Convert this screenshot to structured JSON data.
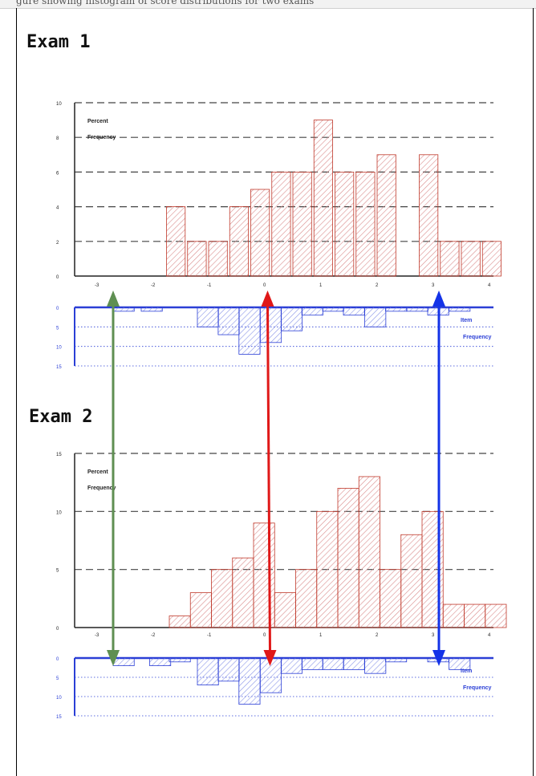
{
  "page": {
    "header_fragment": "gure showing histogram of score distributions for two exams"
  },
  "theme": {
    "percent_bar_color": "#c0392b",
    "percent_hatch_color": "#d98c8c",
    "item_bar_color": "#2b3fd6",
    "item_hatch_color": "#8a96e8",
    "arrow_green": "#5f8f52",
    "arrow_red": "#e01818",
    "arrow_blue": "#1433e8",
    "grid_color": "#444444"
  },
  "chart_data": [
    {
      "type": "bar",
      "title": "Exam 1",
      "percent_panel": {
        "label_lines": [
          "Percent",
          "Frequency"
        ],
        "ylim": [
          0,
          10
        ],
        "yticks": [
          0,
          2,
          4,
          6,
          8,
          10
        ],
        "xlim": [
          -3,
          4
        ],
        "xticks": [
          -3,
          -2,
          -1,
          0,
          1,
          2,
          3,
          4
        ],
        "bin_width": 0.333,
        "bins": [
          {
            "x": -1.75,
            "value": 4
          },
          {
            "x": -1.375,
            "value": 2
          },
          {
            "x": -1.0,
            "value": 2
          },
          {
            "x": -0.625,
            "value": 4
          },
          {
            "x": -0.25,
            "value": 5
          },
          {
            "x": 0.125,
            "value": 6
          },
          {
            "x": 0.5,
            "value": 6
          },
          {
            "x": 0.875,
            "value": 9
          },
          {
            "x": 1.25,
            "value": 6
          },
          {
            "x": 1.625,
            "value": 6
          },
          {
            "x": 2.0,
            "value": 7
          },
          {
            "x": 2.75,
            "value": 7
          },
          {
            "x": 3.125,
            "value": 2
          },
          {
            "x": 3.5,
            "value": 2
          },
          {
            "x": 3.875,
            "value": 2
          }
        ]
      },
      "item_panel": {
        "label_lines": [
          "Item",
          "Frequency"
        ],
        "ylim": [
          0,
          15
        ],
        "yticks": [
          0,
          5,
          10,
          15
        ],
        "bin_width": 0.375,
        "bins": [
          {
            "x": -2.7,
            "value": 1
          },
          {
            "x": -2.2,
            "value": 1
          },
          {
            "x": -1.2,
            "value": 5
          },
          {
            "x": -0.83,
            "value": 7
          },
          {
            "x": -0.46,
            "value": 12
          },
          {
            "x": -0.08,
            "value": 9
          },
          {
            "x": 0.29,
            "value": 6
          },
          {
            "x": 0.66,
            "value": 2
          },
          {
            "x": 1.03,
            "value": 1
          },
          {
            "x": 1.4,
            "value": 2
          },
          {
            "x": 1.78,
            "value": 5
          },
          {
            "x": 2.15,
            "value": 1
          },
          {
            "x": 2.53,
            "value": 1
          },
          {
            "x": 2.9,
            "value": 2
          },
          {
            "x": 3.28,
            "value": 1
          }
        ]
      }
    },
    {
      "type": "bar",
      "title": "Exam 2",
      "percent_panel": {
        "label_lines": [
          "Percent",
          "Frequency"
        ],
        "ylim": [
          0,
          15
        ],
        "yticks": [
          0,
          5,
          10,
          15
        ],
        "xlim": [
          -3,
          4
        ],
        "xticks": [
          -3,
          -2,
          -1,
          0,
          1,
          2,
          3,
          4
        ],
        "bin_width": 0.375,
        "bins": [
          {
            "x": -1.7,
            "value": 1
          },
          {
            "x": -1.325,
            "value": 3
          },
          {
            "x": -0.95,
            "value": 5
          },
          {
            "x": -0.575,
            "value": 6
          },
          {
            "x": -0.2,
            "value": 9
          },
          {
            "x": 0.175,
            "value": 3
          },
          {
            "x": 0.55,
            "value": 5
          },
          {
            "x": 0.925,
            "value": 10
          },
          {
            "x": 1.3,
            "value": 12
          },
          {
            "x": 1.675,
            "value": 13
          },
          {
            "x": 2.05,
            "value": 5
          },
          {
            "x": 2.425,
            "value": 8
          },
          {
            "x": 2.8,
            "value": 10
          },
          {
            "x": 3.175,
            "value": 2
          },
          {
            "x": 3.55,
            "value": 2
          },
          {
            "x": 3.925,
            "value": 2
          }
        ]
      },
      "item_panel": {
        "label_lines": [
          "Item",
          "Frequency"
        ],
        "ylim": [
          0,
          15
        ],
        "yticks": [
          0,
          5,
          10,
          15
        ],
        "bin_width": 0.375,
        "bins": [
          {
            "x": -2.7,
            "value": 2
          },
          {
            "x": -2.05,
            "value": 2
          },
          {
            "x": -1.7,
            "value": 1
          },
          {
            "x": -1.2,
            "value": 7
          },
          {
            "x": -0.83,
            "value": 6
          },
          {
            "x": -0.46,
            "value": 12
          },
          {
            "x": -0.08,
            "value": 9
          },
          {
            "x": 0.29,
            "value": 4
          },
          {
            "x": 0.66,
            "value": 3
          },
          {
            "x": 1.03,
            "value": 3
          },
          {
            "x": 1.4,
            "value": 3
          },
          {
            "x": 1.78,
            "value": 4
          },
          {
            "x": 2.15,
            "value": 1
          },
          {
            "x": 2.9,
            "value": 1
          },
          {
            "x": 3.28,
            "value": 3
          }
        ]
      }
    }
  ],
  "annotations": {
    "arrows": [
      {
        "color_key": "arrow_green",
        "x_value": -2.7
      },
      {
        "color_key": "arrow_red",
        "x_value": 0.05
      },
      {
        "color_key": "arrow_blue",
        "x_value": 3.1
      }
    ]
  }
}
